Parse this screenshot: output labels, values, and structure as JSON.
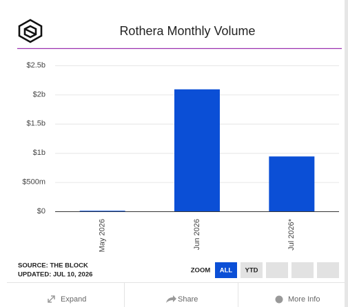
{
  "chart_data": {
    "type": "bar",
    "title": "Rothera Monthly Volume",
    "categories": [
      "May 2026",
      "Jun 2026",
      "Jul 2026*"
    ],
    "values": [
      0.01,
      2.09,
      0.94
    ],
    "color": "#0b4fd6",
    "ylim": [
      0,
      2.5
    ],
    "yticks": [
      {
        "value": 0,
        "label": "$0"
      },
      {
        "value": 0.5,
        "label": "$500m"
      },
      {
        "value": 1,
        "label": "$1b"
      },
      {
        "value": 1.5,
        "label": "$1.5b"
      },
      {
        "value": 2,
        "label": "$2b"
      },
      {
        "value": 2.5,
        "label": "$2.5b"
      }
    ],
    "grid": true
  },
  "source": "SOURCE: THE BLOCK",
  "updated": "UPDATED: JUL 10, 2026",
  "zoom": {
    "label": "ZOOM",
    "options": [
      "ALL",
      "YTD"
    ]
  },
  "footer": [
    "Expand",
    "Share",
    "More Info"
  ]
}
